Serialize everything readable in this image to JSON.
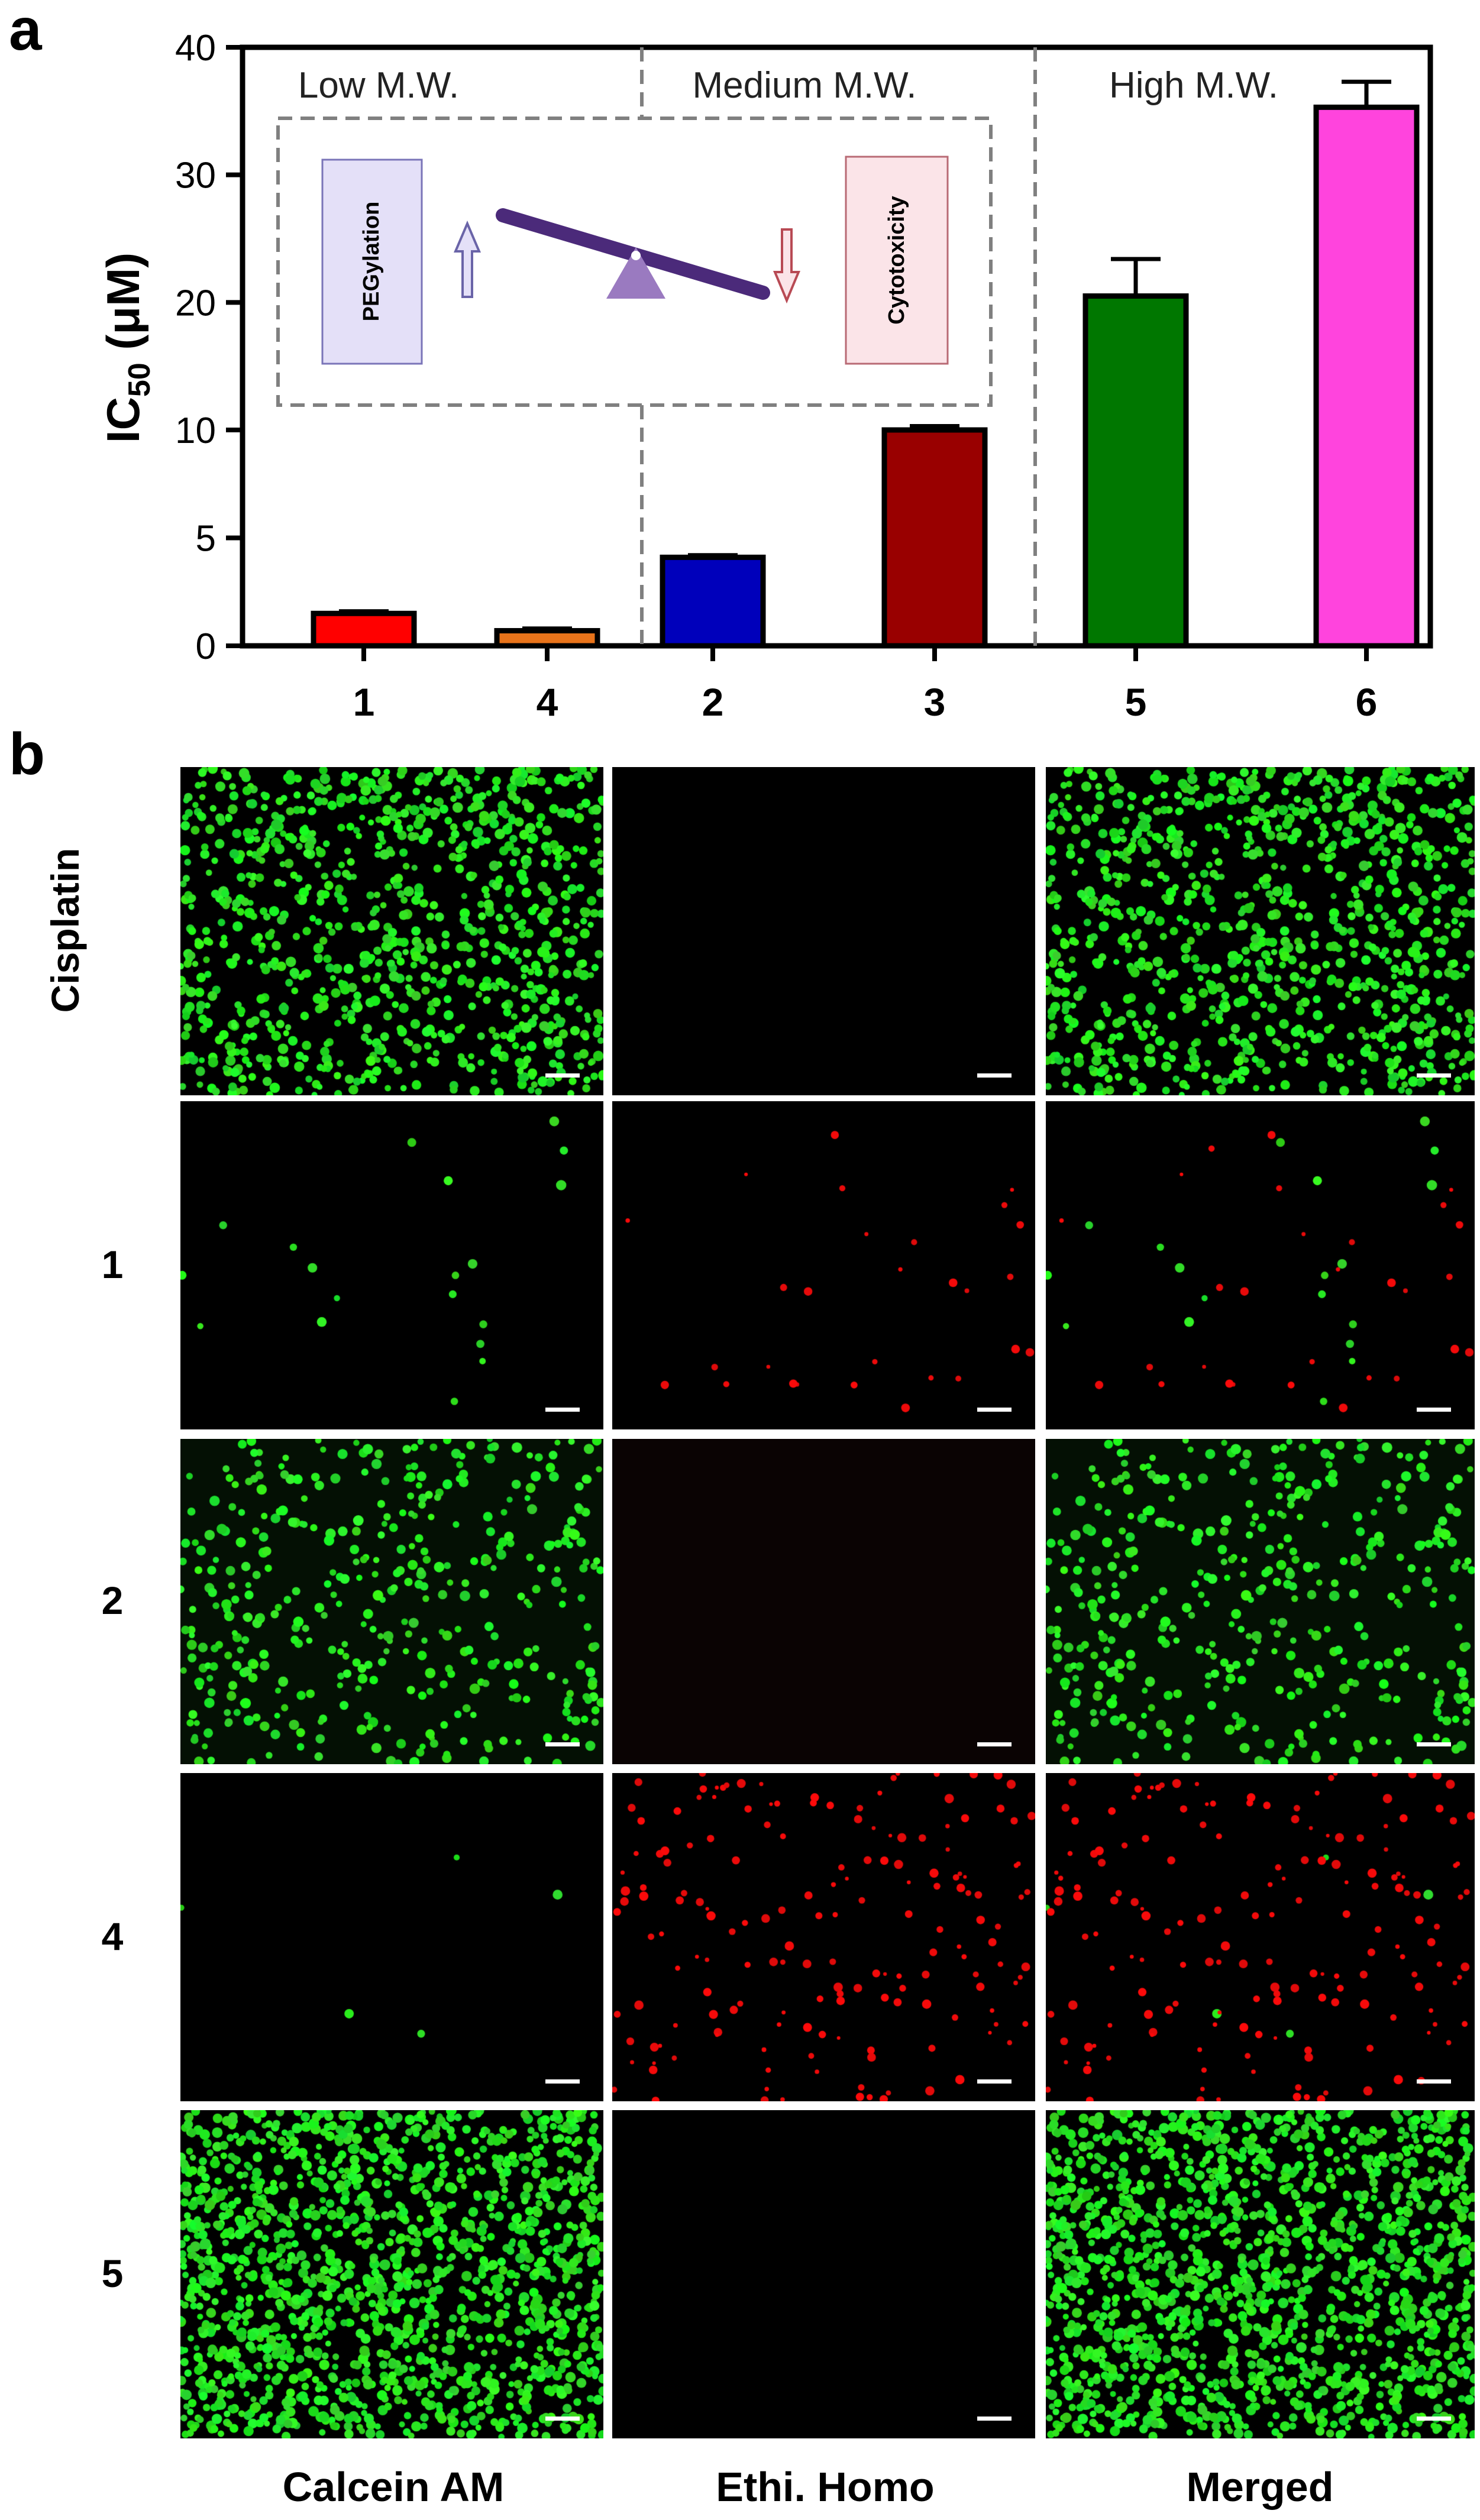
{
  "panels": {
    "a": "a",
    "b": "b"
  },
  "chart_data": {
    "type": "bar",
    "categories": [
      "1",
      "4",
      "2",
      "3",
      "5",
      "6"
    ],
    "values": [
      1.5,
      0.7,
      4.1,
      10.0,
      20.5,
      35.3
    ],
    "errors": [
      0.1,
      0.1,
      0.1,
      0.3,
      2.9,
      2.0
    ],
    "colors": [
      "#ff0000",
      "#e8731a",
      "#0000bb",
      "#990000",
      "#007700",
      "#ff44dd"
    ],
    "ylabel_main": "IC",
    "ylabel_sub": "50",
    "ylabel_unit": " (μM)",
    "yticks": [
      "0",
      "5",
      "10",
      "20",
      "30",
      "40"
    ],
    "ytick_values": [
      0,
      5,
      10,
      20,
      30,
      40
    ],
    "y_scale": "broken",
    "ylim": [
      0,
      40
    ],
    "grid": false,
    "regions": [
      "Low M.W.",
      "Medium M.W.",
      "High M.W."
    ],
    "inset": {
      "left_box": "PEGylation",
      "right_box": "Cytotoxicity"
    }
  },
  "micrographs": {
    "row_labels": [
      "Cisplatin",
      "1",
      "2",
      "4",
      "5"
    ],
    "column_labels": [
      "Calcein AM",
      "Ethi. Homo",
      "Merged"
    ]
  }
}
